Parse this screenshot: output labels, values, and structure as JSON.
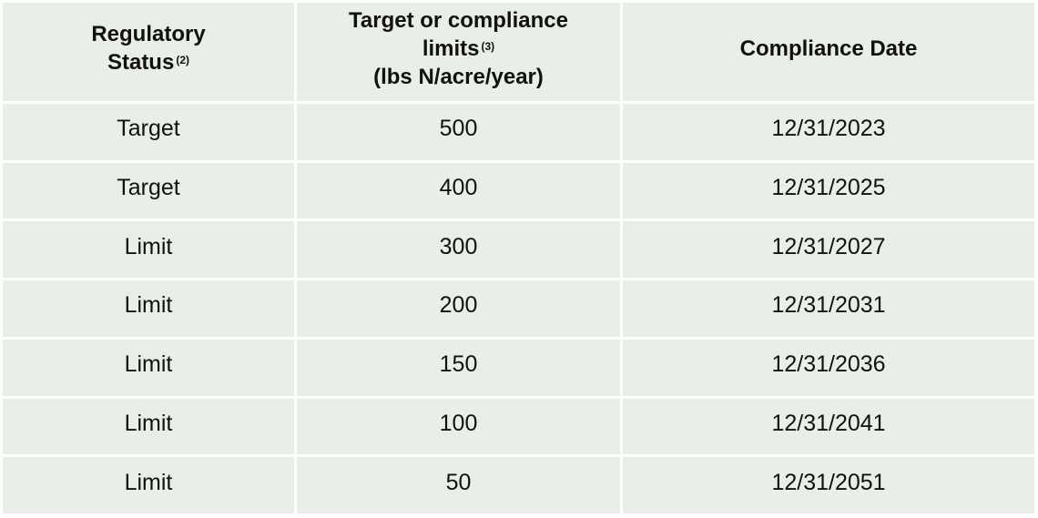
{
  "table": {
    "headers": [
      {
        "lines": [
          "Regulatory"
        ],
        "line2": "Status",
        "sup": "(2)"
      },
      {
        "line1": "Target or compliance",
        "line2": "limits",
        "sup": "(3)",
        "line3": "(lbs N/acre/year)"
      },
      {
        "text": "Compliance Date"
      }
    ],
    "rows": [
      {
        "status": "Target",
        "limit": "500",
        "date": "12/31/2023"
      },
      {
        "status": "Target",
        "limit": "400",
        "date": "12/31/2025"
      },
      {
        "status": "Limit",
        "limit": "300",
        "date": "12/31/2027"
      },
      {
        "status": "Limit",
        "limit": "200",
        "date": "12/31/2031"
      },
      {
        "status": "Limit",
        "limit": "150",
        "date": "12/31/2036"
      },
      {
        "status": "Limit",
        "limit": "100",
        "date": "12/31/2041"
      },
      {
        "status": "Limit",
        "limit": "50",
        "date": "12/31/2051"
      }
    ]
  },
  "colors": {
    "cell_background": "#e9eee7",
    "grid_lines": "#ffffff",
    "text": "#111111"
  }
}
